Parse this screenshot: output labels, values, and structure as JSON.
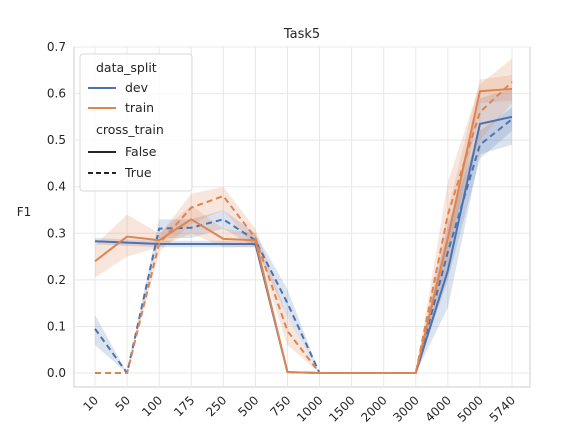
{
  "chart_data": {
    "type": "line",
    "title": "Task5",
    "xlabel": "",
    "ylabel": "F1",
    "categories": [
      "10",
      "50",
      "100",
      "175",
      "250",
      "500",
      "750",
      "1000",
      "1500",
      "2000",
      "3000",
      "4000",
      "5000",
      "5740"
    ],
    "ylim": [
      -0.03,
      0.7
    ],
    "yticks": [
      "0.0",
      "0.1",
      "0.2",
      "0.3",
      "0.4",
      "0.5",
      "0.6",
      "0.7"
    ],
    "ytick_values": [
      0.0,
      0.1,
      0.2,
      0.3,
      0.4,
      0.5,
      0.6,
      0.7
    ],
    "grid": true,
    "legend_position": "upper-left",
    "colors": {
      "dev": "#4c72b0",
      "train": "#dd8452"
    },
    "legend": {
      "hue_title": "data_split",
      "hue_entries": [
        "dev",
        "train"
      ],
      "style_title": "cross_train",
      "style_entries": [
        "False",
        "True"
      ]
    },
    "series": [
      {
        "name": "dev, False",
        "split": "dev",
        "cross_train": "False",
        "values": [
          0.283,
          0.28,
          0.277,
          0.277,
          0.277,
          0.277,
          0.002,
          0.0,
          0.0,
          0.0,
          0.0,
          0.22,
          0.535,
          0.55
        ],
        "lower": [
          0.276,
          0.273,
          0.27,
          0.27,
          0.27,
          0.27,
          0.0,
          0.0,
          0.0,
          0.0,
          0.0,
          0.14,
          0.47,
          0.49
        ],
        "upper": [
          0.29,
          0.287,
          0.284,
          0.284,
          0.284,
          0.284,
          0.004,
          0.0,
          0.0,
          0.0,
          0.0,
          0.3,
          0.59,
          0.61
        ]
      },
      {
        "name": "dev, True",
        "split": "dev",
        "cross_train": "True",
        "values": [
          0.095,
          0.0,
          0.31,
          0.312,
          0.33,
          0.285,
          0.15,
          0.0,
          0.0,
          0.0,
          0.0,
          0.26,
          0.49,
          0.545
        ],
        "lower": [
          0.06,
          0.0,
          0.29,
          0.29,
          0.31,
          0.27,
          0.12,
          0.0,
          0.0,
          0.0,
          0.0,
          0.2,
          0.46,
          0.52
        ],
        "upper": [
          0.125,
          0.0,
          0.33,
          0.33,
          0.35,
          0.3,
          0.18,
          0.0,
          0.0,
          0.0,
          0.0,
          0.32,
          0.52,
          0.57
        ]
      },
      {
        "name": "train, False",
        "split": "train",
        "cross_train": "False",
        "values": [
          0.24,
          0.293,
          0.285,
          0.33,
          0.288,
          0.285,
          0.002,
          0.0,
          0.0,
          0.0,
          0.0,
          0.29,
          0.605,
          0.61
        ],
        "lower": [
          0.205,
          0.25,
          0.27,
          0.3,
          0.27,
          0.27,
          0.0,
          0.0,
          0.0,
          0.0,
          0.0,
          0.23,
          0.58,
          0.585
        ],
        "upper": [
          0.275,
          0.34,
          0.3,
          0.36,
          0.31,
          0.3,
          0.004,
          0.0,
          0.0,
          0.0,
          0.0,
          0.35,
          0.63,
          0.64
        ]
      },
      {
        "name": "train, True",
        "split": "train",
        "cross_train": "True",
        "values": [
          0.0,
          0.0,
          0.278,
          0.355,
          0.38,
          0.29,
          0.09,
          0.0,
          0.0,
          0.0,
          0.0,
          0.34,
          0.56,
          0.625
        ],
        "lower": [
          0.0,
          0.0,
          0.26,
          0.32,
          0.35,
          0.27,
          0.06,
          0.0,
          0.0,
          0.0,
          0.0,
          0.27,
          0.5,
          0.58
        ],
        "upper": [
          0.0,
          0.0,
          0.295,
          0.385,
          0.4,
          0.31,
          0.12,
          0.0,
          0.0,
          0.0,
          0.0,
          0.41,
          0.62,
          0.675
        ]
      }
    ]
  }
}
